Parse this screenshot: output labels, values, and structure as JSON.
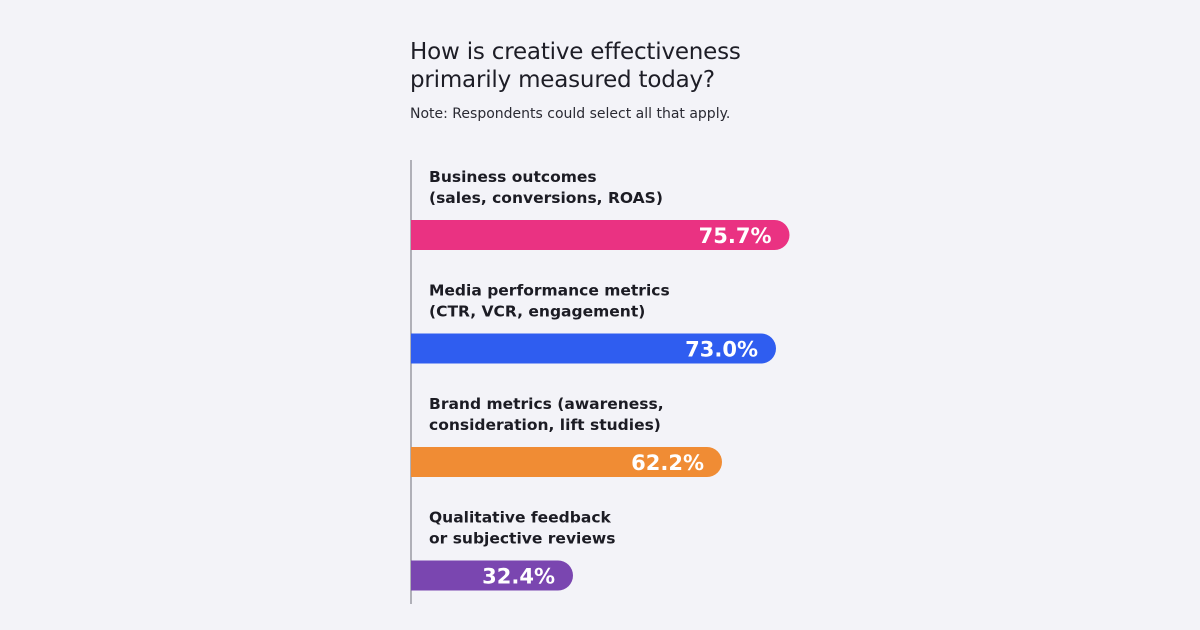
{
  "title_lines": [
    "How is creative effectiveness",
    "primarily measured today?"
  ],
  "note": "Note: Respondents could select all that apply.",
  "chart_data": {
    "type": "bar",
    "orientation": "horizontal",
    "categories": [
      [
        "Business outcomes",
        "(sales, conversions, ROAS)"
      ],
      [
        "Media performance metrics",
        "(CTR, VCR, engagement)"
      ],
      [
        "Brand metrics (awareness,",
        "consideration, lift studies)"
      ],
      [
        "Qualitative feedback",
        "or subjective reviews"
      ]
    ],
    "values": [
      75.7,
      73.0,
      62.2,
      32.4
    ],
    "value_labels": [
      "75.7%",
      "73.0%",
      "62.2%",
      "32.4%"
    ],
    "colors": [
      "#ea3282",
      "#2f5df0",
      "#f08c34",
      "#7a46b0"
    ],
    "title": "How is creative effectiveness primarily measured today?",
    "xlabel": "",
    "ylabel": "",
    "grid": false,
    "legend": "none"
  }
}
